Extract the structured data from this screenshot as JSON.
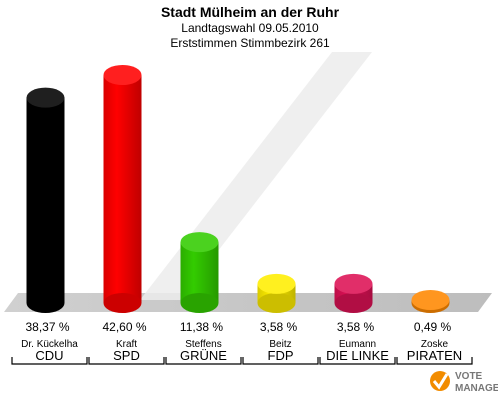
{
  "header": {
    "title": "Stadt Mülheim an der Ruhr",
    "subtitle": "Landtagswahl 09.05.2010",
    "subtitle2": "Erststimmen Stimmbezirk 261"
  },
  "chart_data": {
    "type": "bar",
    "categories": [
      "CDU",
      "SPD",
      "GRÜNE",
      "FDP",
      "DIE LINKE",
      "PIRATEN"
    ],
    "candidates": [
      "Dr. Kückelha",
      "Kraft",
      "Steffens",
      "Beitz",
      "Eumann",
      "Zoske"
    ],
    "values": [
      38.37,
      42.6,
      11.38,
      3.58,
      3.58,
      0.49
    ],
    "value_labels": [
      "38,37 %",
      "42,60 %",
      "11,38 %",
      "3,58 %",
      "3,58 %",
      "0,49 %"
    ],
    "colors": [
      "#000000",
      "#ff0000",
      "#33cc00",
      "#ffee00",
      "#dd1155",
      "#ff8800"
    ],
    "ylim": [
      0,
      42.6
    ],
    "grid": false,
    "legend": "none"
  },
  "logo": {
    "line1": "VOTE",
    "line2": "MANAGER"
  }
}
